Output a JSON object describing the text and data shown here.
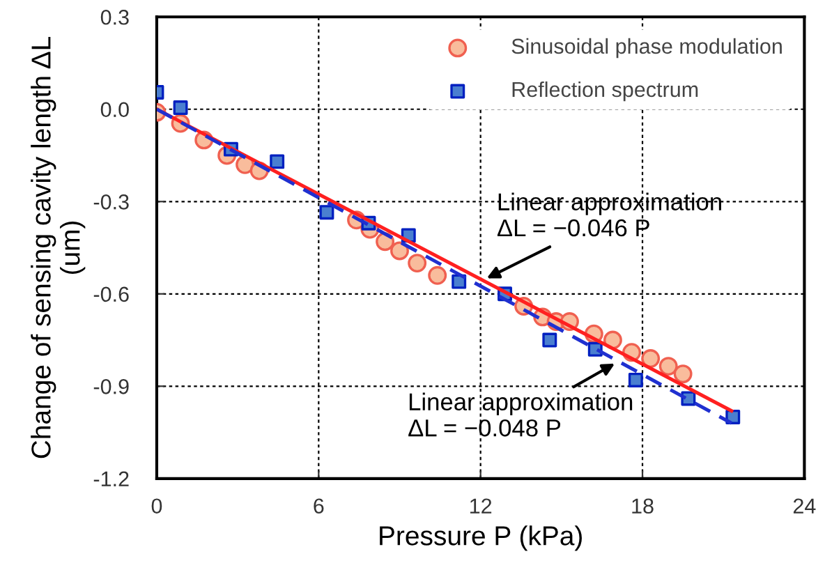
{
  "chart_data": {
    "type": "scatter",
    "xlabel": "Pressure P (kPa)",
    "ylabel": "Change of sensing cavity length ΔL\n(um)",
    "xlim": [
      0,
      24
    ],
    "xticks": [
      0,
      6,
      12,
      18,
      24
    ],
    "ylim": [
      -1.2,
      0.3
    ],
    "yticks": [
      {
        "value": 0.3,
        "label": "0.3"
      },
      {
        "value": 0.0,
        "label": "0.0"
      },
      {
        "value": -0.3,
        "label": "-0.3"
      },
      {
        "value": -0.6,
        "label": "-0.6"
      },
      {
        "value": -0.9,
        "label": "-0.9"
      },
      {
        "value": -1.2,
        "label": "-1.2"
      }
    ],
    "grid": true,
    "legend": "top right",
    "series": [
      {
        "name": "Sinusoidal phase modulation",
        "marker": "circle",
        "color": "#f9bc9c",
        "x": [
          0,
          0.88,
          1.75,
          2.6,
          3.27,
          3.8,
          7.4,
          7.9,
          8.46,
          9.0,
          9.65,
          10.4,
          13.6,
          14.3,
          14.8,
          15.3,
          16.2,
          16.9,
          17.6,
          18.3,
          18.96,
          19.5
        ],
        "values": [
          -0.01,
          -0.046,
          -0.1,
          -0.15,
          -0.18,
          -0.2,
          -0.36,
          -0.39,
          -0.43,
          -0.46,
          -0.5,
          -0.54,
          -0.64,
          -0.675,
          -0.69,
          -0.69,
          -0.73,
          -0.75,
          -0.79,
          -0.81,
          -0.835,
          -0.86
        ]
      },
      {
        "name": "Reflection spectrum",
        "marker": "square",
        "color": "#4a7fd0",
        "x": [
          0,
          0.88,
          2.75,
          4.46,
          6.3,
          7.85,
          9.33,
          11.2,
          12.9,
          14.56,
          16.25,
          17.75,
          19.7,
          21.35
        ],
        "values": [
          0.055,
          0.005,
          -0.13,
          -0.17,
          -0.335,
          -0.37,
          -0.41,
          -0.56,
          -0.6,
          -0.75,
          -0.78,
          -0.88,
          -0.94,
          -1.0
        ]
      },
      {
        "type": "line",
        "line_style": "solid",
        "color": "#ff2020",
        "x": [
          0,
          21.3
        ],
        "values": [
          0,
          -0.98
        ]
      },
      {
        "type": "line",
        "line_style": "dashed",
        "color": "#2030d0",
        "x": [
          0,
          21.3
        ],
        "values": [
          0,
          -1.02
        ]
      }
    ],
    "annotations": [
      {
        "text": "Linear approximation\nΔL = −0.046 P",
        "x": 12.1,
        "y": -0.555
      },
      {
        "text": "Linear approximation\nΔL = −0.048 P",
        "x": 17.1,
        "y": -0.82
      }
    ]
  }
}
